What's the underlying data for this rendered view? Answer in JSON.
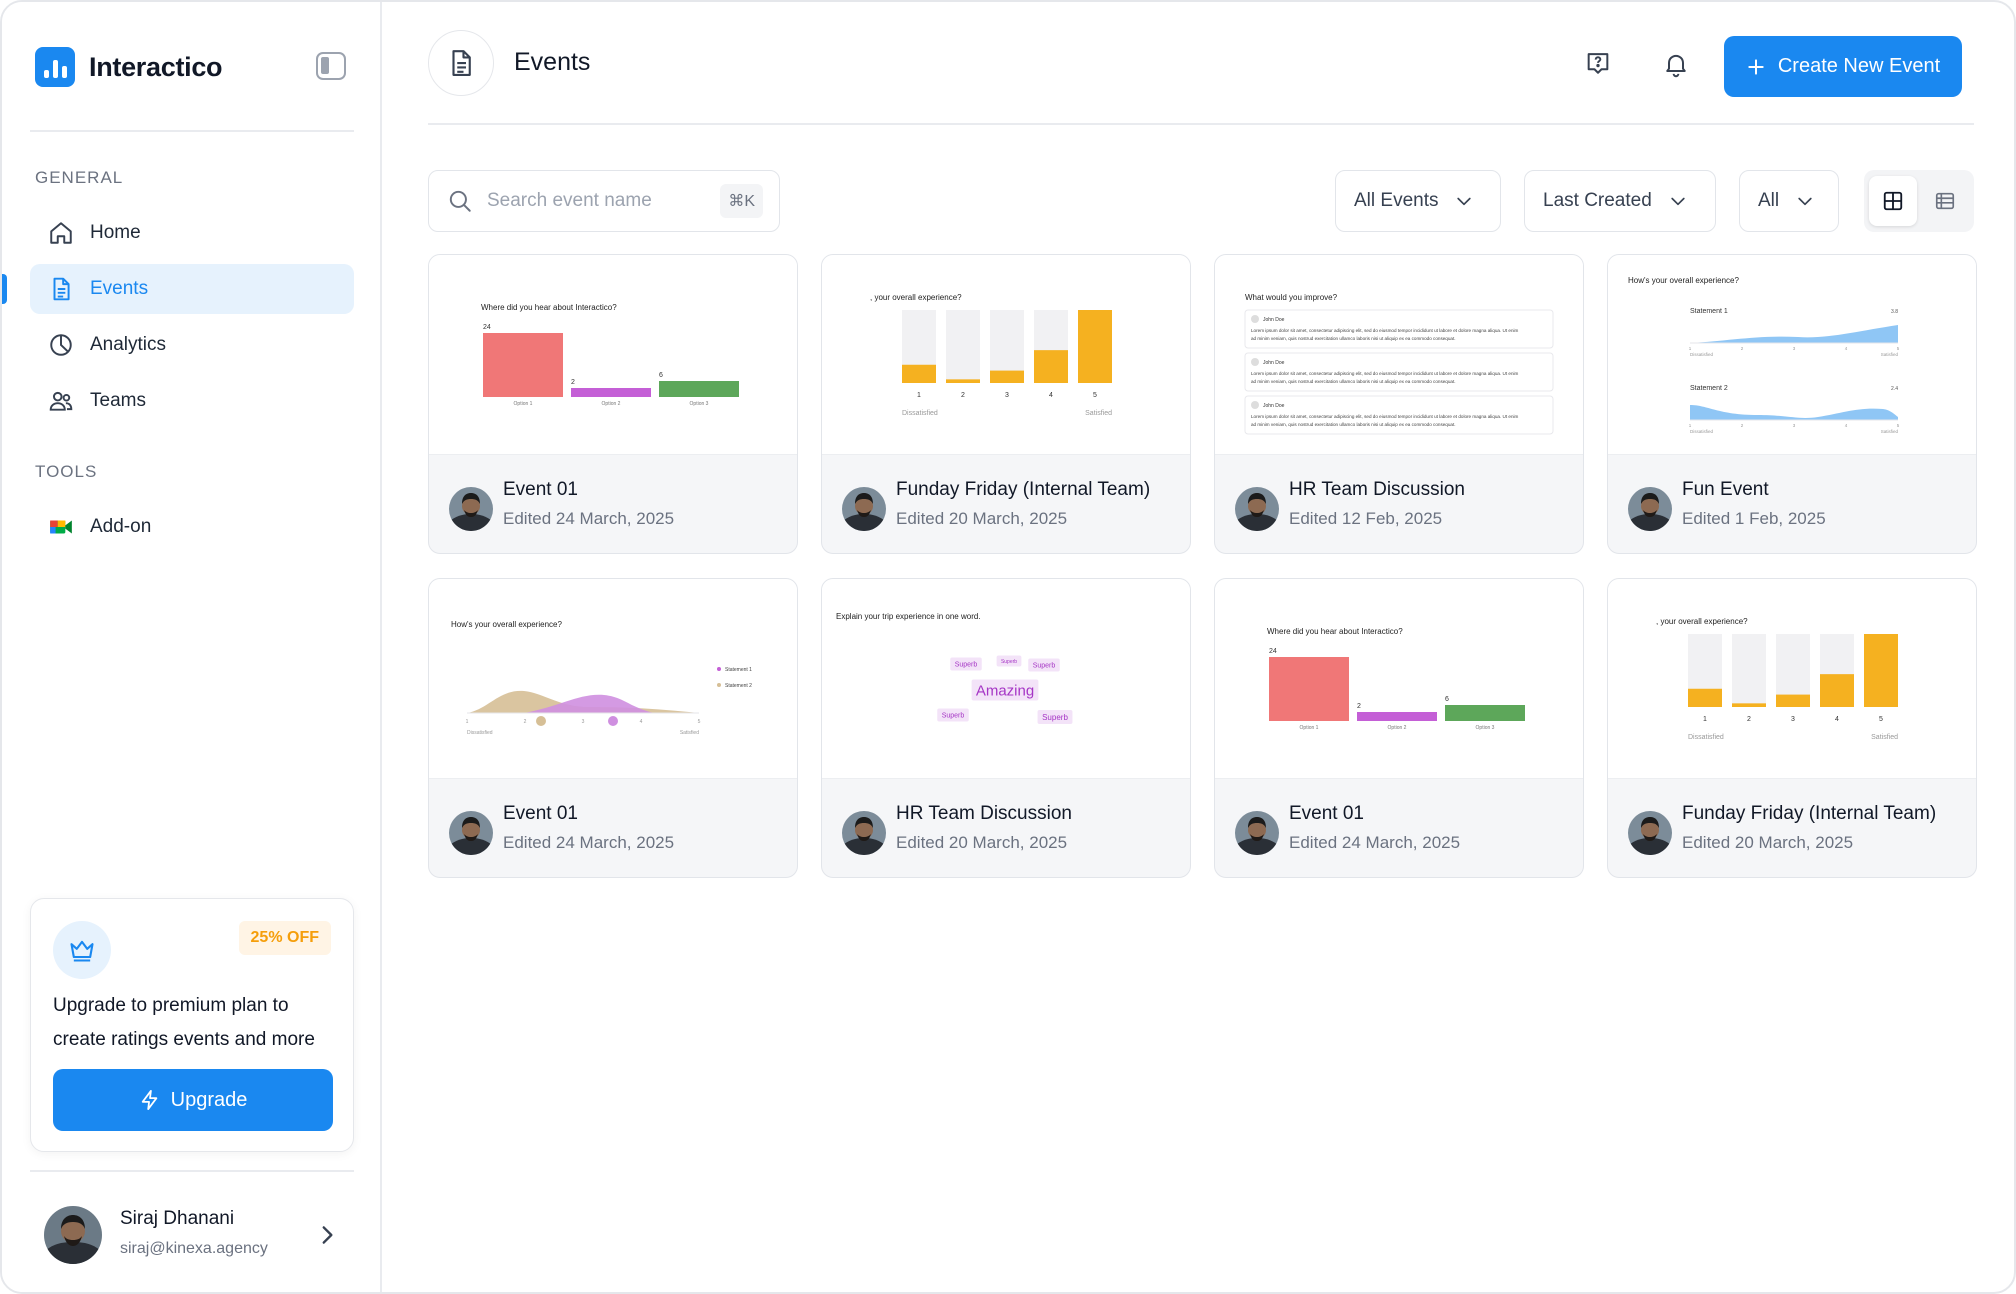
{
  "app": {
    "name": "Interactico"
  },
  "sidebar": {
    "general_label": "GENERAL",
    "tools_label": "TOOLS",
    "nav": [
      {
        "label": "Home",
        "icon": "home-icon"
      },
      {
        "label": "Events",
        "icon": "document-icon",
        "active": true
      },
      {
        "label": "Analytics",
        "icon": "pie-chart-icon"
      },
      {
        "label": "Teams",
        "icon": "users-icon"
      }
    ],
    "tools": [
      {
        "label": "Add-on",
        "icon": "google-meet-icon"
      }
    ],
    "promo": {
      "badge": "25% OFF",
      "text": "Upgrade to premium plan to create ratings events and more",
      "button": "Upgrade"
    },
    "user": {
      "name": "Siraj Dhanani",
      "email": "siraj@kinexa.agency"
    }
  },
  "header": {
    "title": "Events",
    "create_button": "Create New Event"
  },
  "toolbar": {
    "search_placeholder": "Search event name",
    "shortcut": "⌘K",
    "filter_type": "All Events",
    "sort": "Last Created",
    "status": "All"
  },
  "colors": {
    "accent": "#1a88f0",
    "red": "#f07777",
    "purple": "#c45fd6",
    "green": "#5da75a",
    "amber": "#f5b120",
    "blue": "#8fc6f5"
  },
  "events": [
    {
      "title": "Event 01",
      "date": "Edited 24 March, 2025",
      "preview": {
        "type": "bar",
        "question": "Where did you hear about Interactico?",
        "categories": [
          "Option 1",
          "Option 2",
          "Option 3"
        ],
        "values": [
          24,
          2,
          6
        ]
      }
    },
    {
      "title": "Funday Friday (Internal Team)",
      "date": "Edited 20 March, 2025",
      "preview": {
        "type": "rating",
        "question": ", your overall experience?",
        "categories": [
          "1",
          "2",
          "3",
          "4",
          "5"
        ],
        "values": [
          0.25,
          0.05,
          0.17,
          0.45,
          1.0
        ],
        "low": "Dissatisfied",
        "high": "Satisfied"
      }
    },
    {
      "title": "HR Team Discussion",
      "date": "Edited 12 Feb, 2025",
      "preview": {
        "type": "text",
        "question": "What would you improve?",
        "author": "John Doe",
        "line1": "Lorem ipsum dolor sit amet, consectetur adipiscing elit, sed do eiusmod tempor incididunt ut labore et dolore magna aliqua. Ut enim",
        "line2": "ad minim veniam, quis nostrud exercitation ullamco laboris nisi ut aliquip ex ea commodo consequat."
      }
    },
    {
      "title": "Fun Event",
      "date": "Edited 1 Feb, 2025",
      "preview": {
        "type": "area",
        "question": "How's your overall experience?",
        "statement1": "Statement 1",
        "value1": "3.8",
        "statement2": "Statement 2",
        "value2": "2.4",
        "ticks": [
          "1",
          "2",
          "3",
          "4",
          "5"
        ],
        "low": "Dissatisfied",
        "high": "Satisfied"
      }
    },
    {
      "title": "Event 01",
      "date": "Edited 24 March, 2025",
      "preview": {
        "type": "wave",
        "question": "How's your overall experience?",
        "legend1": "Statement 1",
        "legend2": "Statement 2",
        "ticks": [
          "1",
          "2",
          "3",
          "4",
          "5"
        ],
        "low": "Dissatisfied",
        "high": "Satisfied"
      }
    },
    {
      "title": "HR Team Discussion",
      "date": "Edited 20 March, 2025",
      "preview": {
        "type": "wordcloud",
        "question": "Explain your trip experience in one word.",
        "big": "Amazing",
        "small": "Superb"
      }
    },
    {
      "title": "Event 01",
      "date": "Edited 24 March, 2025",
      "preview": {
        "type": "bar",
        "question": "Where did you hear about Interactico?",
        "categories": [
          "Option 1",
          "Option 2",
          "Option 3"
        ],
        "values": [
          24,
          2,
          6
        ]
      }
    },
    {
      "title": "Funday Friday (Internal Team)",
      "date": "Edited 20 March, 2025",
      "preview": {
        "type": "rating",
        "question": ", your overall experience?",
        "categories": [
          "1",
          "2",
          "3",
          "4",
          "5"
        ],
        "values": [
          0.25,
          0.05,
          0.17,
          0.45,
          1.0
        ],
        "low": "Dissatisfied",
        "high": "Satisfied"
      }
    }
  ]
}
